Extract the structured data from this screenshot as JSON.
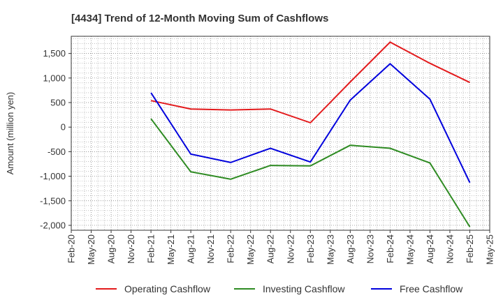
{
  "chart_data": {
    "type": "line",
    "title": "[4434]  Trend of 12-Month Moving Sum of Cashflows",
    "xlabel": "",
    "ylabel": "Amount (million yen)",
    "x_ticks": [
      "Feb-20",
      "May-20",
      "Aug-20",
      "Nov-20",
      "Feb-21",
      "May-21",
      "Aug-21",
      "Nov-21",
      "Feb-22",
      "May-22",
      "Aug-22",
      "Nov-22",
      "Feb-23",
      "May-23",
      "Aug-23",
      "Nov-23",
      "Feb-24",
      "May-24",
      "Aug-24",
      "Nov-24",
      "Feb-25",
      "May-25"
    ],
    "y_ticks": [
      1500,
      1000,
      500,
      0,
      -500,
      -1000,
      -1500,
      -2000
    ],
    "y_tick_labels": [
      "1,500",
      "1,000",
      "500",
      "0",
      "-500",
      "-1,000",
      "-1,500",
      "-2,000"
    ],
    "ylim": [
      -2100,
      1850
    ],
    "grid": true,
    "legend_position": "bottom",
    "x": [
      "Feb-21",
      "Aug-21",
      "Feb-22",
      "Aug-22",
      "Feb-23",
      "Aug-23",
      "Feb-24",
      "Aug-24",
      "Feb-25"
    ],
    "series": [
      {
        "name": "Operating Cashflow",
        "color": "#e31a1c",
        "values": [
          540,
          370,
          350,
          370,
          90,
          920,
          1730,
          1300,
          910
        ]
      },
      {
        "name": "Investing Cashflow",
        "color": "#2e8b22",
        "values": [
          170,
          -910,
          -1060,
          -780,
          -790,
          -370,
          -430,
          -730,
          -2030
        ]
      },
      {
        "name": "Free Cashflow",
        "color": "#0000dd",
        "values": [
          700,
          -550,
          -720,
          -430,
          -710,
          550,
          1290,
          570,
          -1130
        ]
      }
    ]
  }
}
